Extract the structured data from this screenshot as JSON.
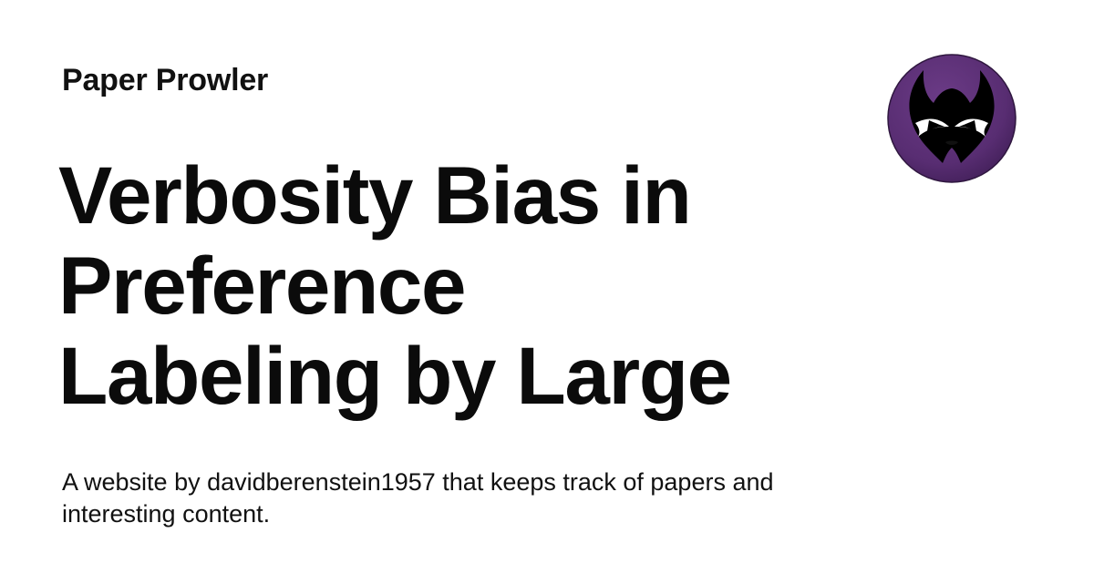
{
  "site": {
    "name": "Paper Prowler"
  },
  "article": {
    "title_lines": [
      "Verbosity Bias in",
      "Preference",
      "Labeling by Large"
    ]
  },
  "footer": {
    "description_lines": [
      "A website by davidberenstein1957 that keeps track of papers and",
      "interesting content."
    ]
  },
  "logo": {
    "icon": "masked-cat-logo",
    "background_color": "#5a2e73",
    "mask_color": "#000000",
    "eye_color": "#ffffff"
  }
}
